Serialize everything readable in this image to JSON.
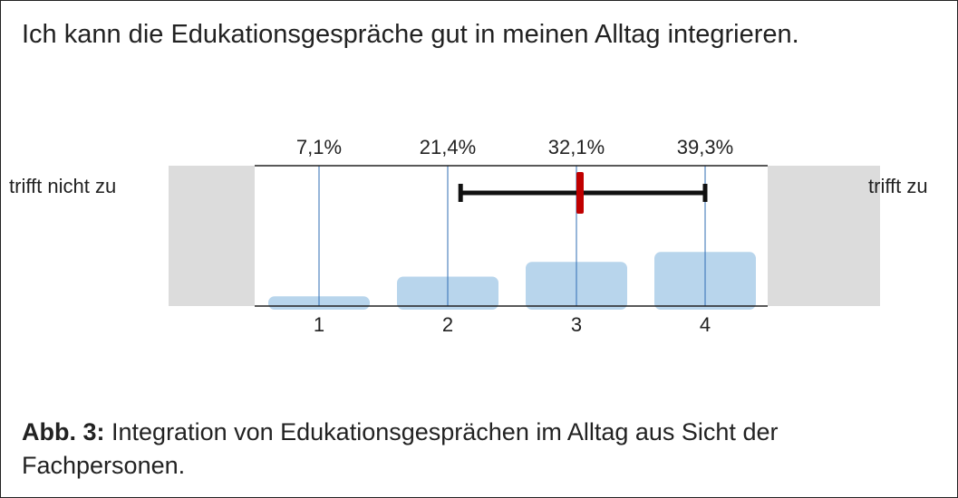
{
  "question": "Ich kann die Edukationsgespräche gut in meinen Alltag integrieren.",
  "caption": {
    "label": "Abb. 3:",
    "text": "Integration von Edukationsgesprächen im Alltag aus Sicht der Fachpersonen."
  },
  "chart_data": {
    "type": "bar",
    "categories": [
      "1",
      "2",
      "3",
      "4"
    ],
    "values": [
      7.1,
      21.4,
      32.1,
      39.3
    ],
    "value_labels": [
      "7,1%",
      "21,4%",
      "32,1%",
      "39,3%"
    ],
    "left_anchor": "trifft nicht zu",
    "right_anchor": "trifft zu",
    "range_min": 2.1,
    "range_max": 4.0,
    "mean": 3.0,
    "colors": {
      "bar": "#b8d5ec",
      "gridline": "#2f6db3",
      "range": "#111111",
      "mean": "#c00000",
      "side_panel": "#dcdcdc"
    }
  }
}
